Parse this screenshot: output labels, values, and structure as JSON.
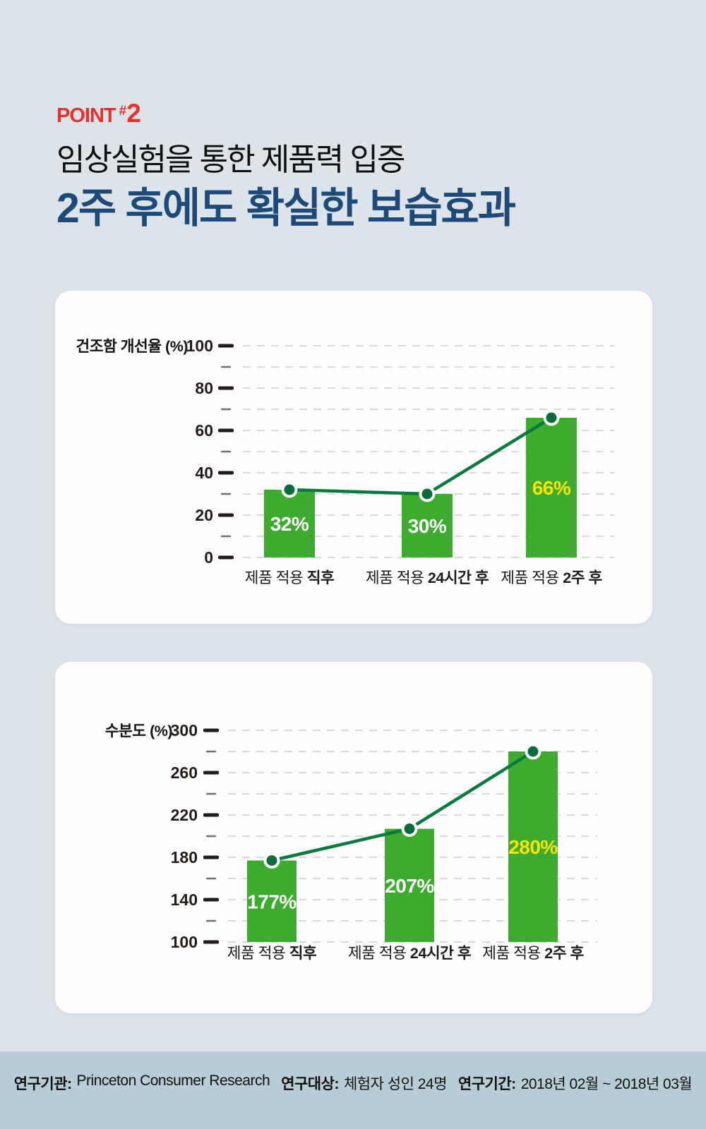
{
  "header": {
    "point_word": "POINT",
    "point_hash": "#",
    "point_number": "2",
    "subtitle": "임상실험을 통한 제품력 입증",
    "title": "2주 후에도 확실한 보습효과"
  },
  "chart_data": [
    {
      "type": "bar",
      "title": "",
      "ylabel": "건조함 개선율 (%)",
      "xlabel": "",
      "ylim": [
        0,
        100
      ],
      "ytick_major_step": 20,
      "ytick_minor_step": 10,
      "grid": "dashed-horizontal",
      "legend": "none",
      "categories": [
        {
          "pre": "제품 적용",
          "bold": "직후"
        },
        {
          "pre": "제품 적용",
          "bold": "24시간 후"
        },
        {
          "pre": "제품 적용",
          "bold": "2주 후"
        }
      ],
      "values": [
        32,
        30,
        66
      ],
      "value_labels": [
        "32%",
        "30%",
        "66%"
      ],
      "value_label_colors": [
        "#ffffff",
        "#ffffff",
        "#f8e400"
      ],
      "line_overlay": true
    },
    {
      "type": "bar",
      "title": "",
      "ylabel": "수분도 (%)",
      "xlabel": "",
      "ylim": [
        100,
        300
      ],
      "ytick_major_step": 40,
      "ytick_minor_step": 20,
      "grid": "dashed-horizontal",
      "legend": "none",
      "categories": [
        {
          "pre": "제품 적용",
          "bold": "직후"
        },
        {
          "pre": "제품 적용",
          "bold": "24시간 후"
        },
        {
          "pre": "제품 적용",
          "bold": "2주 후"
        }
      ],
      "values": [
        177,
        207,
        280
      ],
      "value_labels": [
        "177%",
        "207%",
        "280%"
      ],
      "value_label_colors": [
        "#ffffff",
        "#ffffff",
        "#f8e400"
      ],
      "line_overlay": true
    }
  ],
  "footer": {
    "items": [
      {
        "label": "연구기관:",
        "value": "Princeton Consumer Research"
      },
      {
        "label": "연구대상:",
        "value": "체험자 성인 24명"
      },
      {
        "label": "연구기간:",
        "value": "2018년 02월 ~ 2018년 03월"
      }
    ]
  },
  "colors": {
    "background": "#dce3e9",
    "footer_band": "#b6cdd6",
    "accent_red": "#e8312a",
    "title_navy": "#1d4a78",
    "bar_green": "#3dac2e",
    "line_green": "#077a3e",
    "marker_green": "#0b6b3c",
    "label_yellow": "#f8e400",
    "grid_gray": "#d9d9d9",
    "axis_dark": "#241c19"
  }
}
